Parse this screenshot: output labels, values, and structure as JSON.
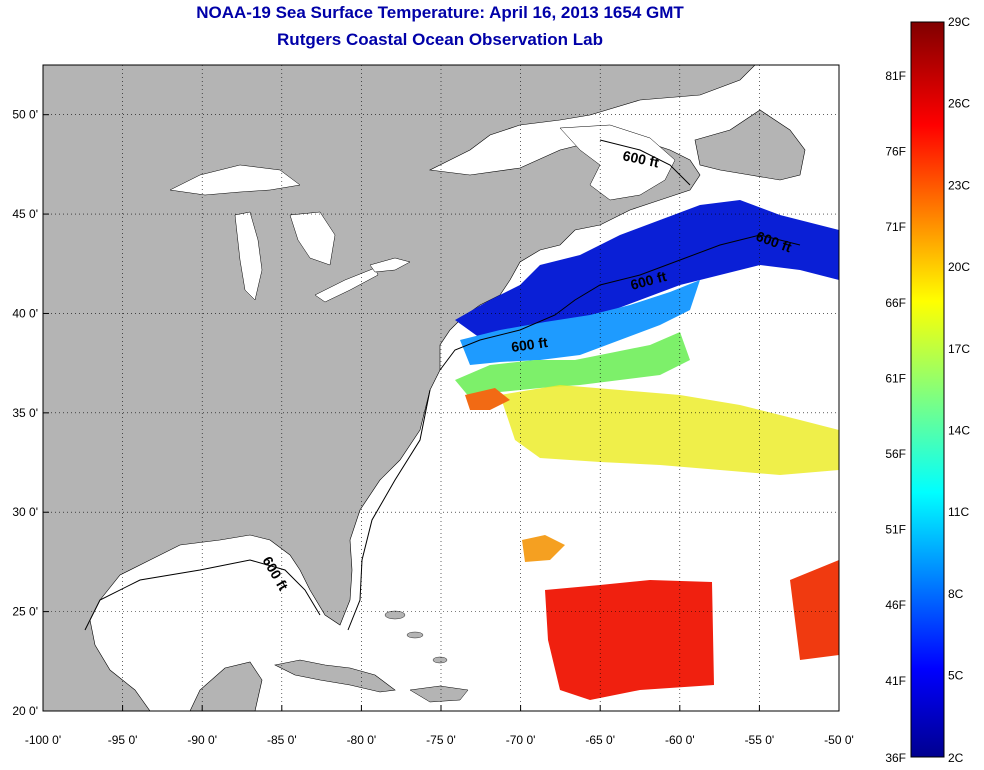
{
  "title": "NOAA-19 Sea Surface Temperature:  April 16, 2013 1654 GMT",
  "subtitle": "Rutgers Coastal Ocean Observation Lab",
  "map": {
    "lon_range": [
      -100,
      -50
    ],
    "lat_range": [
      20,
      52.5
    ],
    "lon_ticks": [
      "-100 0'",
      "-95 0'",
      "-90 0'",
      "-85 0'",
      "-80 0'",
      "-75 0'",
      "-70 0'",
      "-65 0'",
      "-60 0'",
      "-55 0'",
      "-50 0'"
    ],
    "lat_ticks": [
      "20 0'",
      "25 0'",
      "30 0'",
      "35 0'",
      "40 0'",
      "45 0'",
      "50 0'"
    ],
    "contour_labels": [
      "600 ft",
      "600 ft",
      "600 ft",
      "600 ft",
      "600 ft"
    ],
    "land_color": "#b4b4b4",
    "grid": true
  },
  "colorbar": {
    "fahrenheit_labels": [
      "81F",
      "76F",
      "71F",
      "66F",
      "61F",
      "56F",
      "51F",
      "46F",
      "41F",
      "36F"
    ],
    "celsius_labels": [
      "29C",
      "26C",
      "23C",
      "20C",
      "17C",
      "14C",
      "11C",
      "8C",
      "5C",
      "2C"
    ],
    "colormap": "jet"
  }
}
